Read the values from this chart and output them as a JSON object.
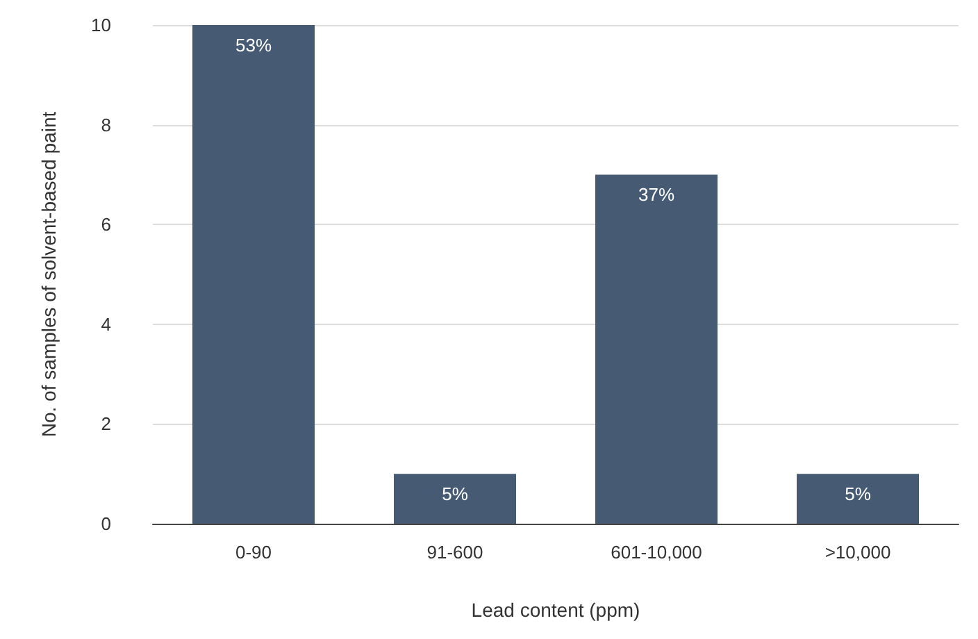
{
  "chart_data": {
    "type": "bar",
    "xlabel": "Lead content (ppm)",
    "ylabel": "No. of samples of solvent-based paint",
    "categories": [
      "0-90",
      "91-600",
      "601-10,000",
      ">10,000"
    ],
    "values": [
      10,
      1,
      7,
      1
    ],
    "color": "#465a73",
    "annotations": [
      {
        "text": "53%",
        "x": "0-90",
        "y": 10
      },
      {
        "text": "5%",
        "x": "91-600",
        "y": 1
      },
      {
        "text": "37%",
        "x": "601-10,000",
        "y": 7
      },
      {
        "text": "5%",
        "x": ">10,000",
        "y": 1
      }
    ],
    "ylim": [
      0,
      10
    ],
    "yticks": [
      0,
      2,
      4,
      6,
      8,
      10
    ],
    "grid": "y"
  }
}
